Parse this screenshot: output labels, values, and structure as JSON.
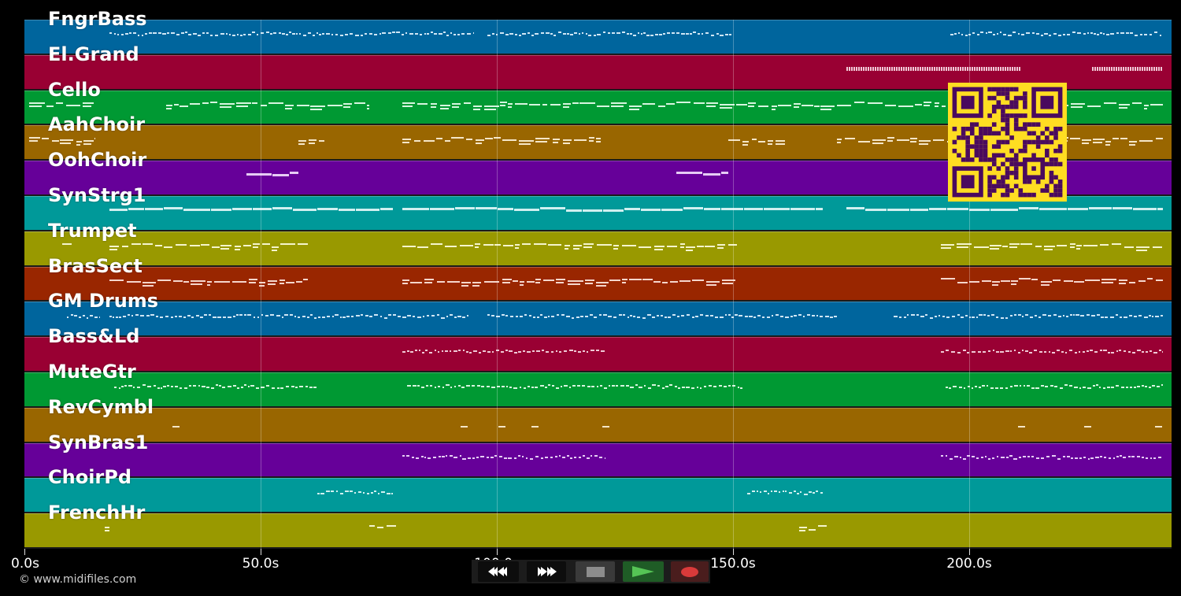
{
  "app": {
    "type": "midi-piano-roll-player",
    "copyright": "© www.midifiles.com"
  },
  "timeline": {
    "unit": "s",
    "start_seconds": 0,
    "end_seconds_approx": 242.8,
    "ticks": [
      {
        "value": 0,
        "label": "0.0s"
      },
      {
        "value": 50,
        "label": "50.0s"
      },
      {
        "value": 100,
        "label": "100.0s"
      },
      {
        "value": 150,
        "label": "150.0s"
      },
      {
        "value": 200,
        "label": "200.0s"
      }
    ]
  },
  "tracks": [
    {
      "name": "FngrBass",
      "color": "#00659d",
      "note_color": "#cfe6f5",
      "segments": [
        [
          18,
          95
        ],
        [
          98,
          150
        ],
        [
          196,
          241
        ]
      ],
      "style": "dots"
    },
    {
      "name": "El.Grand",
      "color": "#990033",
      "note_color": "#f0c8d6",
      "segments": [
        [
          174,
          211
        ],
        [
          226,
          241
        ]
      ],
      "style": "ticks"
    },
    {
      "name": "Cello",
      "color": "#009933",
      "note_color": "#d6f5df",
      "segments": [
        [
          1,
          15
        ],
        [
          30,
          73
        ],
        [
          80,
          195
        ],
        [
          208,
          241
        ]
      ],
      "style": "wave"
    },
    {
      "name": "AahChoir",
      "color": "#996600",
      "note_color": "#f5e6c8",
      "segments": [
        [
          1,
          15
        ],
        [
          58,
          64
        ],
        [
          80,
          122
        ],
        [
          149,
          161
        ],
        [
          172,
          241
        ]
      ],
      "style": "wave"
    },
    {
      "name": "OohChoir",
      "color": "#660099",
      "note_color": "#e6ccf5",
      "segments": [
        [
          47,
          58
        ],
        [
          138,
          149
        ]
      ],
      "style": "bar"
    },
    {
      "name": "SynStrg1",
      "color": "#009999",
      "note_color": "#d0f0f0",
      "segments": [
        [
          18,
          78
        ],
        [
          80,
          169
        ],
        [
          174,
          241
        ]
      ],
      "style": "bar"
    },
    {
      "name": "Trumpet",
      "color": "#999900",
      "note_color": "#f5f5cc",
      "segments": [
        [
          8,
          10
        ],
        [
          18,
          60
        ],
        [
          80,
          151
        ],
        [
          194,
          241
        ]
      ],
      "style": "wave"
    },
    {
      "name": "BrasSect",
      "color": "#992600",
      "note_color": "#f5d6cc",
      "segments": [
        [
          18,
          60
        ],
        [
          80,
          151
        ],
        [
          194,
          241
        ]
      ],
      "style": "wave"
    },
    {
      "name": "GM Drums",
      "color": "#00659d",
      "note_color": "#cfe6f5",
      "segments": [
        [
          9,
          16
        ],
        [
          18,
          94
        ],
        [
          98,
          172
        ],
        [
          184,
          241
        ]
      ],
      "style": "dots"
    },
    {
      "name": "Bass&Ld",
      "color": "#990033",
      "note_color": "#f0c8d6",
      "segments": [
        [
          80,
          123
        ],
        [
          194,
          241
        ]
      ],
      "style": "dots"
    },
    {
      "name": "MuteGtr",
      "color": "#009933",
      "note_color": "#d6f5df",
      "segments": [
        [
          19,
          62
        ],
        [
          81,
          152
        ],
        [
          195,
          241
        ]
      ],
      "style": "dots"
    },
    {
      "name": "RevCymbl",
      "color": "#996600",
      "note_color": "#f5e6c8",
      "markers": [
        32,
        93,
        101,
        108,
        123,
        211,
        225,
        240
      ],
      "style": "ticks"
    },
    {
      "name": "SynBras1",
      "color": "#660099",
      "note_color": "#e6ccf5",
      "segments": [
        [
          80,
          123
        ],
        [
          194,
          241
        ]
      ],
      "style": "dots"
    },
    {
      "name": "ChoirPd",
      "color": "#009999",
      "note_color": "#d0f0f0",
      "segments": [
        [
          62,
          78
        ],
        [
          153,
          169
        ]
      ],
      "style": "dots"
    },
    {
      "name": "FrenchHr",
      "color": "#999900",
      "note_color": "#f5f5cc",
      "segments": [
        [
          17,
          18
        ],
        [
          73,
          79
        ],
        [
          164,
          170
        ]
      ],
      "style": "wave"
    }
  ],
  "transport": {
    "buttons": [
      {
        "name": "rewind-button",
        "icon": "rewind-icon",
        "glyph": "◀◀"
      },
      {
        "name": "fast-forward-button",
        "icon": "fast-forward-icon",
        "glyph": "▶▶"
      },
      {
        "name": "stop-button",
        "icon": "stop-icon",
        "color": "#8c8c8c"
      },
      {
        "name": "play-button",
        "icon": "play-icon",
        "color": "#55c455"
      },
      {
        "name": "record-button",
        "icon": "record-icon",
        "color": "#d93a3a"
      }
    ]
  },
  "overlay": {
    "qr_code": {
      "fg": "#4a0a5e",
      "bg": "#ffdd22"
    }
  }
}
